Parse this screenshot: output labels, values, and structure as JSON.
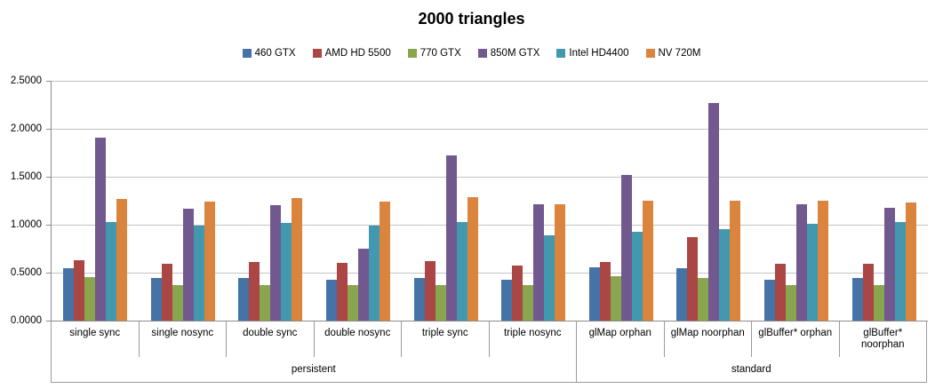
{
  "chart_data": {
    "type": "bar",
    "title": "2000 triangles",
    "categories": [
      "single sync",
      "single nosync",
      "double sync",
      "double nosync",
      "triple sync",
      "triple nosync",
      "glMap orphan",
      "glMap noorphan",
      "glBuffer* orphan",
      "glBuffer* noorphan"
    ],
    "category_groups": [
      {
        "label": "persistent",
        "span": 6
      },
      {
        "label": "standard",
        "span": 4
      }
    ],
    "series": [
      {
        "name": "460 GTX",
        "color": "#4572A7",
        "values": [
          0.55,
          0.44,
          0.44,
          0.43,
          0.44,
          0.43,
          0.56,
          0.55,
          0.43,
          0.44
        ]
      },
      {
        "name": "AMD HD 5500",
        "color": "#AA4643",
        "values": [
          0.63,
          0.59,
          0.61,
          0.6,
          0.62,
          0.57,
          0.61,
          0.87,
          0.59,
          0.59
        ]
      },
      {
        "name": "770 GTX",
        "color": "#89A54E",
        "values": [
          0.45,
          0.37,
          0.37,
          0.37,
          0.37,
          0.37,
          0.46,
          0.44,
          0.37,
          0.37
        ]
      },
      {
        "name": "850M GTX",
        "color": "#71588F",
        "values": [
          1.91,
          1.17,
          1.2,
          0.75,
          1.72,
          1.21,
          1.52,
          2.27,
          1.21,
          1.18
        ]
      },
      {
        "name": "Intel HD4400",
        "color": "#4198AF",
        "values": [
          1.03,
          0.99,
          1.02,
          0.99,
          1.03,
          0.89,
          0.93,
          0.95,
          1.01,
          1.03
        ]
      },
      {
        "name": "NV 720M",
        "color": "#DB843D",
        "values": [
          1.27,
          1.24,
          1.28,
          1.24,
          1.29,
          1.21,
          1.25,
          1.25,
          1.25,
          1.23
        ]
      }
    ],
    "ylim": [
      0.0,
      2.5
    ],
    "y_ticks": [
      "0.0000",
      "0.5000",
      "1.0000",
      "1.5000",
      "2.0000",
      "2.5000"
    ],
    "xlabel": "",
    "ylabel": "",
    "grid": "horizontal",
    "legend_position": "top"
  }
}
